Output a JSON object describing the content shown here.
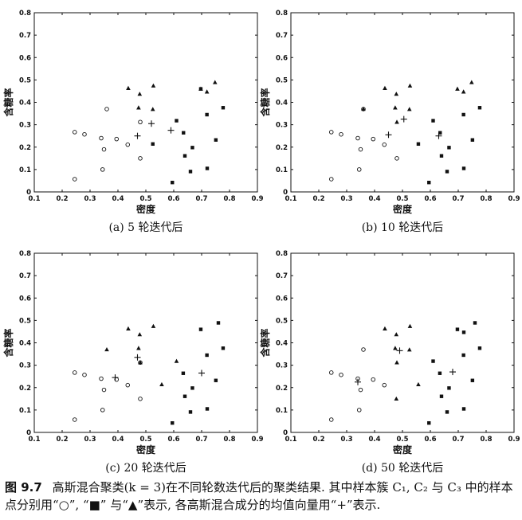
{
  "panels": [
    {
      "caption": "(a) 5 轮迭代后",
      "xlabel": "密度",
      "ylabel": "含糖率",
      "xlim": [
        0.1,
        0.9
      ],
      "ylim": [
        0,
        0.8
      ],
      "xticks": [
        "0.1",
        "0.2",
        "0.3",
        "0.4",
        "0.5",
        "0.6",
        "0.7",
        "0.8",
        "0.9"
      ],
      "yticks": [
        "0",
        "0.1",
        "0.2",
        "0.3",
        "0.4",
        "0.5",
        "0.6",
        "0.7",
        "0.8"
      ],
      "circles": [
        [
          0.245,
          0.267
        ],
        [
          0.28,
          0.257
        ],
        [
          0.34,
          0.24
        ],
        [
          0.36,
          0.37
        ],
        [
          0.395,
          0.236
        ],
        [
          0.435,
          0.211
        ],
        [
          0.48,
          0.312
        ],
        [
          0.48,
          0.15
        ],
        [
          0.35,
          0.19
        ],
        [
          0.245,
          0.057
        ],
        [
          0.345,
          0.1
        ]
      ],
      "squares": [
        [
          0.525,
          0.214
        ],
        [
          0.595,
          0.042
        ],
        [
          0.61,
          0.318
        ],
        [
          0.635,
          0.264
        ],
        [
          0.64,
          0.161
        ],
        [
          0.66,
          0.091
        ],
        [
          0.667,
          0.198
        ],
        [
          0.697,
          0.46
        ],
        [
          0.72,
          0.105
        ],
        [
          0.719,
          0.345
        ],
        [
          0.751,
          0.232
        ],
        [
          0.777,
          0.376
        ]
      ],
      "triangles": [
        [
          0.437,
          0.463
        ],
        [
          0.474,
          0.376
        ],
        [
          0.478,
          0.437
        ],
        [
          0.527,
          0.474
        ],
        [
          0.525,
          0.369
        ],
        [
          0.697,
          0.46
        ],
        [
          0.719,
          0.447
        ],
        [
          0.748,
          0.489
        ]
      ],
      "means": [
        [
          0.47,
          0.25
        ],
        [
          0.52,
          0.305
        ],
        [
          0.59,
          0.275
        ]
      ]
    },
    {
      "caption": "(b) 10 轮迭代后",
      "xlabel": "密度",
      "ylabel": "含糖率",
      "xlim": [
        0.1,
        0.9
      ],
      "ylim": [
        0,
        0.8
      ],
      "xticks": [
        "0.1",
        "0.2",
        "0.3",
        "0.4",
        "0.5",
        "0.6",
        "0.7",
        "0.8",
        "0.9"
      ],
      "yticks": [
        "0",
        "0.1",
        "0.2",
        "0.3",
        "0.4",
        "0.5",
        "0.6",
        "0.7",
        "0.8"
      ],
      "circles": [
        [
          0.245,
          0.267
        ],
        [
          0.28,
          0.257
        ],
        [
          0.34,
          0.24
        ],
        [
          0.36,
          0.37
        ],
        [
          0.395,
          0.236
        ],
        [
          0.435,
          0.211
        ],
        [
          0.48,
          0.15
        ],
        [
          0.35,
          0.19
        ],
        [
          0.245,
          0.057
        ],
        [
          0.345,
          0.1
        ]
      ],
      "squares": [
        [
          0.557,
          0.214
        ],
        [
          0.595,
          0.042
        ],
        [
          0.61,
          0.318
        ],
        [
          0.635,
          0.264
        ],
        [
          0.64,
          0.161
        ],
        [
          0.66,
          0.091
        ],
        [
          0.667,
          0.198
        ],
        [
          0.72,
          0.105
        ],
        [
          0.751,
          0.232
        ],
        [
          0.777,
          0.376
        ],
        [
          0.719,
          0.345
        ]
      ],
      "triangles": [
        [
          0.437,
          0.463
        ],
        [
          0.474,
          0.376
        ],
        [
          0.478,
          0.437
        ],
        [
          0.527,
          0.474
        ],
        [
          0.525,
          0.369
        ],
        [
          0.697,
          0.46
        ],
        [
          0.719,
          0.447
        ],
        [
          0.748,
          0.489
        ],
        [
          0.36,
          0.37
        ],
        [
          0.48,
          0.312
        ]
      ],
      "means": [
        [
          0.45,
          0.255
        ],
        [
          0.505,
          0.325
        ],
        [
          0.63,
          0.25
        ]
      ]
    },
    {
      "caption": "(c) 20 轮迭代后",
      "xlabel": "密度",
      "ylabel": "含糖率",
      "xlim": [
        0.1,
        0.9
      ],
      "ylim": [
        0,
        0.8
      ],
      "xticks": [
        "0.1",
        "0.2",
        "0.3",
        "0.4",
        "0.5",
        "0.6",
        "0.7",
        "0.8",
        "0.9"
      ],
      "yticks": [
        "0",
        "0.1",
        "0.2",
        "0.3",
        "0.4",
        "0.5",
        "0.6",
        "0.7",
        "0.8"
      ],
      "circles": [
        [
          0.245,
          0.267
        ],
        [
          0.28,
          0.257
        ],
        [
          0.34,
          0.24
        ],
        [
          0.395,
          0.236
        ],
        [
          0.435,
          0.211
        ],
        [
          0.48,
          0.312
        ],
        [
          0.48,
          0.15
        ],
        [
          0.35,
          0.19
        ],
        [
          0.245,
          0.057
        ],
        [
          0.345,
          0.1
        ]
      ],
      "squares": [
        [
          0.634,
          0.264
        ],
        [
          0.595,
          0.042
        ],
        [
          0.64,
          0.161
        ],
        [
          0.66,
          0.091
        ],
        [
          0.667,
          0.198
        ],
        [
          0.697,
          0.46
        ],
        [
          0.719,
          0.345
        ],
        [
          0.72,
          0.105
        ],
        [
          0.751,
          0.232
        ],
        [
          0.76,
          0.489
        ],
        [
          0.777,
          0.376
        ]
      ],
      "triangles": [
        [
          0.437,
          0.463
        ],
        [
          0.474,
          0.376
        ],
        [
          0.478,
          0.437
        ],
        [
          0.527,
          0.474
        ],
        [
          0.36,
          0.37
        ],
        [
          0.557,
          0.214
        ],
        [
          0.61,
          0.318
        ],
        [
          0.48,
          0.312
        ]
      ],
      "means": [
        [
          0.39,
          0.245
        ],
        [
          0.47,
          0.335
        ],
        [
          0.7,
          0.265
        ]
      ]
    },
    {
      "caption": "(d) 50 轮迭代后",
      "xlabel": "密度",
      "ylabel": "含糖率",
      "xlim": [
        0.1,
        0.9
      ],
      "ylim": [
        0,
        0.8
      ],
      "xticks": [
        "0.1",
        "0.2",
        "0.3",
        "0.4",
        "0.5",
        "0.6",
        "0.7",
        "0.8",
        "0.9"
      ],
      "yticks": [
        "0",
        "0.1",
        "0.2",
        "0.3",
        "0.4",
        "0.5",
        "0.6",
        "0.7",
        "0.8"
      ],
      "circles": [
        [
          0.245,
          0.267
        ],
        [
          0.28,
          0.257
        ],
        [
          0.34,
          0.24
        ],
        [
          0.36,
          0.37
        ],
        [
          0.395,
          0.236
        ],
        [
          0.435,
          0.211
        ],
        [
          0.35,
          0.19
        ],
        [
          0.245,
          0.057
        ],
        [
          0.345,
          0.1
        ]
      ],
      "squares": [
        [
          0.634,
          0.264
        ],
        [
          0.595,
          0.042
        ],
        [
          0.64,
          0.161
        ],
        [
          0.66,
          0.091
        ],
        [
          0.667,
          0.198
        ],
        [
          0.697,
          0.46
        ],
        [
          0.719,
          0.345
        ],
        [
          0.72,
          0.105
        ],
        [
          0.751,
          0.232
        ],
        [
          0.76,
          0.489
        ],
        [
          0.777,
          0.376
        ],
        [
          0.61,
          0.318
        ],
        [
          0.72,
          0.447
        ]
      ],
      "triangles": [
        [
          0.437,
          0.463
        ],
        [
          0.474,
          0.376
        ],
        [
          0.478,
          0.437
        ],
        [
          0.527,
          0.474
        ],
        [
          0.525,
          0.369
        ],
        [
          0.48,
          0.312
        ],
        [
          0.557,
          0.214
        ],
        [
          0.478,
          0.15
        ]
      ],
      "means": [
        [
          0.34,
          0.225
        ],
        [
          0.49,
          0.365
        ],
        [
          0.68,
          0.27
        ]
      ]
    }
  ],
  "figure_caption": {
    "number": "图 9.7",
    "text": "高斯混合聚类(k = 3)在不同轮数迭代后的聚类结果. 其中样本簇 C₁, C₂ 与 C₃ 中的样本点分别用“○”, “■” 与“▲”表示, 各高斯混合成分的均值向量用“+”表示."
  }
}
